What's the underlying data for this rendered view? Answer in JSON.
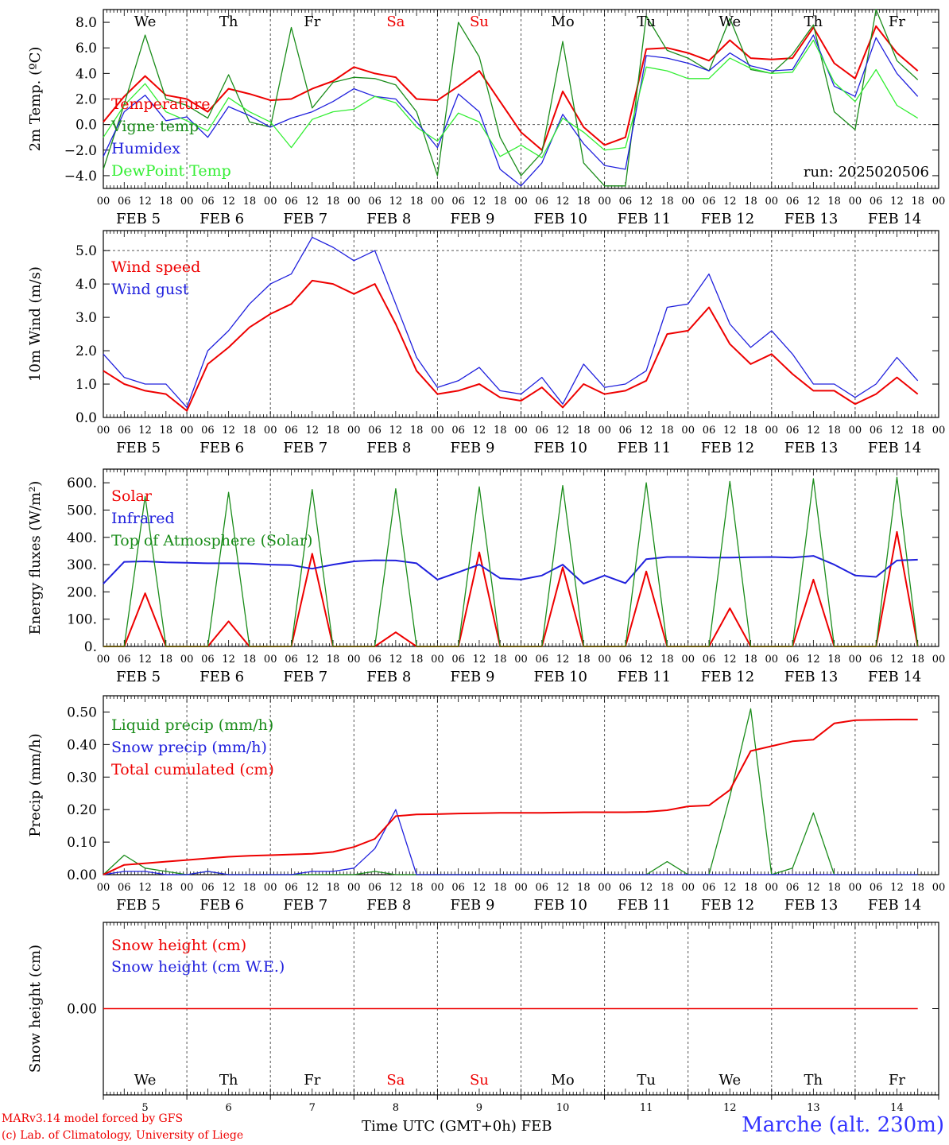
{
  "footer": {
    "credit_line1": "MARv3.14 model forced by GFS",
    "credit_line2": "(c) Lab. of Climatology, University of Liege",
    "axis_title": "Time UTC (GMT+0h)",
    "month": "FEB",
    "station": "Marche (alt. 230m)"
  },
  "colors": {
    "red": "#ee0000",
    "green": "#1a8c1a",
    "blue": "#2020dd",
    "lightgreen": "#33ee33",
    "grid": "#555555"
  },
  "chart_data": {
    "days": [
      {
        "weekday": "We",
        "date": "5",
        "weekend": false
      },
      {
        "weekday": "Th",
        "date": "6",
        "weekend": false
      },
      {
        "weekday": "Fr",
        "date": "7",
        "weekend": false
      },
      {
        "weekday": "Sa",
        "date": "8",
        "weekend": true
      },
      {
        "weekday": "Su",
        "date": "9",
        "weekend": true
      },
      {
        "weekday": "Mo",
        "date": "10",
        "weekend": false
      },
      {
        "weekday": "Tu",
        "date": "11",
        "weekend": false
      },
      {
        "weekday": "We",
        "date": "12",
        "weekend": false
      },
      {
        "weekday": "Th",
        "date": "13",
        "weekend": false
      },
      {
        "weekday": "Fr",
        "date": "14",
        "weekend": false
      }
    ],
    "hour_ticks": [
      "00",
      "06",
      "12",
      "18"
    ],
    "x_step_hours": 6,
    "panels": [
      {
        "type": "line",
        "ylabel": "2m Temp. (ºC)",
        "ylim": [
          -5,
          9
        ],
        "yticks": [
          -4,
          -2,
          0,
          2,
          4,
          6,
          8
        ],
        "yticklabels": [
          "−4.0",
          "−2.0",
          "0.0",
          "2.0",
          "4.0",
          "6.0",
          "8.0"
        ],
        "ref_line": 0,
        "show_weekdays_top": true,
        "annotation": "run: 2025020506",
        "series": [
          {
            "name": "Temperature",
            "color": "#ee0000",
            "width": 2,
            "values": [
              0.2,
              2.2,
              3.8,
              2.3,
              2.0,
              1.0,
              2.8,
              2.4,
              1.9,
              2.0,
              2.8,
              3.4,
              4.5,
              4.0,
              3.7,
              2.0,
              1.9,
              3.0,
              4.2,
              1.8,
              -0.6,
              -2.0,
              2.6,
              -0.2,
              -1.6,
              -1.0,
              5.9,
              6.0,
              5.6,
              5.0,
              6.6,
              5.2,
              5.1,
              5.2,
              7.6,
              4.8,
              3.6,
              7.7,
              5.6,
              4.2
            ]
          },
          {
            "name": "Vigne temp",
            "color": "#1a8c1a",
            "width": 1.3,
            "values": [
              -3.5,
              1.6,
              7.0,
              2.0,
              1.5,
              0.5,
              3.9,
              0.2,
              -0.2,
              7.6,
              1.3,
              3.3,
              3.7,
              3.6,
              3.1,
              1.0,
              -4.0,
              8.0,
              5.3,
              -1.0,
              -4.0,
              -2.2,
              6.5,
              -3.0,
              -4.8,
              -4.8,
              8.5,
              5.8,
              5.2,
              4.2,
              8.3,
              4.3,
              4.0,
              5.5,
              7.8,
              1.0,
              -0.4,
              9.0,
              5.0,
              3.5
            ]
          },
          {
            "name": "Humidex",
            "color": "#2020dd",
            "width": 1.3,
            "values": [
              -2.5,
              1.0,
              2.3,
              0.3,
              0.6,
              -1.0,
              1.4,
              0.7,
              -0.2,
              0.5,
              1.0,
              1.8,
              2.8,
              2.2,
              2.0,
              0.2,
              -1.8,
              2.4,
              1.0,
              -3.5,
              -4.8,
              -3.0,
              0.8,
              -1.5,
              -3.2,
              -3.5,
              5.4,
              5.2,
              4.8,
              4.2,
              5.6,
              4.6,
              4.2,
              4.3,
              7.0,
              3.0,
              2.2,
              6.8,
              4.0,
              2.2
            ]
          },
          {
            "name": "DewPoint Temp",
            "color": "#33ee33",
            "width": 1.3,
            "values": [
              -1.0,
              1.5,
              3.2,
              1.0,
              0.3,
              -0.5,
              2.1,
              1.0,
              0.2,
              -1.8,
              0.4,
              1.0,
              1.2,
              2.2,
              1.7,
              -0.2,
              -1.3,
              0.9,
              0.2,
              -2.5,
              -1.6,
              -2.6,
              0.5,
              -0.6,
              -2.0,
              -1.8,
              4.5,
              4.2,
              3.6,
              3.6,
              5.2,
              4.4,
              4.0,
              4.1,
              6.6,
              3.3,
              1.8,
              4.3,
              1.5,
              0.5
            ]
          }
        ]
      },
      {
        "type": "line",
        "ylabel": "10m Wind (m/s)",
        "ylim": [
          0,
          5.6
        ],
        "yticks": [
          0,
          1,
          2,
          3,
          4,
          5
        ],
        "yticklabels": [
          "0.0",
          "1.0",
          "2.0",
          "3.0",
          "4.0",
          "5.0"
        ],
        "ref_line": 5,
        "series": [
          {
            "name": "Wind speed",
            "color": "#ee0000",
            "width": 2,
            "values": [
              1.4,
              1.0,
              0.8,
              0.7,
              0.2,
              1.6,
              2.1,
              2.7,
              3.1,
              3.4,
              4.1,
              4.0,
              3.7,
              4.0,
              2.8,
              1.4,
              0.7,
              0.8,
              1.0,
              0.6,
              0.5,
              0.9,
              0.3,
              1.0,
              0.7,
              0.8,
              1.1,
              2.5,
              2.6,
              3.3,
              2.2,
              1.6,
              1.9,
              1.3,
              0.8,
              0.8,
              0.4,
              0.7,
              1.2,
              0.7
            ]
          },
          {
            "name": "Wind gust",
            "color": "#2020dd",
            "width": 1.3,
            "values": [
              1.9,
              1.2,
              1.0,
              1.0,
              0.3,
              2.0,
              2.6,
              3.4,
              4.0,
              4.3,
              5.4,
              5.1,
              4.7,
              5.0,
              3.4,
              1.8,
              0.9,
              1.1,
              1.5,
              0.8,
              0.7,
              1.2,
              0.4,
              1.6,
              0.9,
              1.0,
              1.4,
              3.3,
              3.4,
              4.3,
              2.8,
              2.1,
              2.6,
              1.9,
              1.0,
              1.0,
              0.6,
              1.0,
              1.8,
              1.1
            ]
          }
        ]
      },
      {
        "type": "line",
        "ylabel": "Energy fluxes (W/m²)",
        "ylim": [
          0,
          650
        ],
        "yticks": [
          0,
          100,
          200,
          300,
          400,
          500,
          600
        ],
        "yticklabels": [
          "0.",
          "100.",
          "200.",
          "300.",
          "400.",
          "500.",
          "600."
        ],
        "series": [
          {
            "name": "Solar",
            "color": "#ee0000",
            "width": 2,
            "values": [
              0,
              0,
              195,
              0,
              0,
              0,
              92,
              0,
              0,
              0,
              340,
              0,
              0,
              0,
              52,
              0,
              0,
              0,
              345,
              0,
              0,
              0,
              290,
              0,
              0,
              0,
              275,
              0,
              0,
              0,
              140,
              0,
              0,
              0,
              245,
              0,
              0,
              0,
              420,
              0
            ]
          },
          {
            "name": "Infrared",
            "color": "#2020dd",
            "width": 2,
            "values": [
              230,
              310,
              312,
              308,
              307,
              305,
              305,
              304,
              300,
              298,
              285,
              300,
              312,
              316,
              315,
              305,
              245,
              272,
              300,
              250,
              245,
              260,
              300,
              230,
              260,
              232,
              320,
              328,
              328,
              326,
              326,
              327,
              328,
              326,
              332,
              300,
              260,
              255,
              315,
              318
            ]
          },
          {
            "name": "Top of Atmosphere (Solar)",
            "color": "#1a8c1a",
            "width": 1.3,
            "values": [
              0,
              0,
              550,
              0,
              0,
              0,
              565,
              0,
              0,
              0,
              575,
              0,
              0,
              0,
              578,
              0,
              0,
              0,
              585,
              0,
              0,
              0,
              590,
              0,
              0,
              0,
              600,
              0,
              0,
              0,
              605,
              0,
              0,
              0,
              615,
              0,
              0,
              0,
              620,
              0
            ]
          }
        ]
      },
      {
        "type": "line",
        "ylabel": "Precip (mm/h)",
        "ylim": [
          0,
          0.55
        ],
        "yticks": [
          0,
          0.1,
          0.2,
          0.3,
          0.4,
          0.5
        ],
        "yticklabels": [
          "0.00",
          "0.10",
          "0.20",
          "0.30",
          "0.40",
          "0.50"
        ],
        "series": [
          {
            "name": "Liquid precip (mm/h)",
            "color": "#1a8c1a",
            "width": 1.3,
            "values": [
              0,
              0.06,
              0.02,
              0.01,
              0,
              0.01,
              0,
              0,
              0,
              0,
              0,
              0,
              0,
              0.01,
              0,
              0,
              0,
              0,
              0,
              0,
              0,
              0,
              0,
              0,
              0,
              0,
              0,
              0.04,
              0,
              0,
              0.24,
              0.51,
              0,
              0.02,
              0.19,
              0,
              0,
              0,
              0,
              0
            ]
          },
          {
            "name": "Snow precip (mm/h)",
            "color": "#2020dd",
            "width": 1.3,
            "values": [
              0,
              0.01,
              0.01,
              0,
              0,
              0.01,
              0,
              0,
              0,
              0,
              0.01,
              0.01,
              0.02,
              0.08,
              0.2,
              0,
              0,
              0,
              0,
              0,
              0,
              0,
              0,
              0,
              0,
              0,
              0,
              0,
              0,
              0,
              0,
              0,
              0,
              0,
              0,
              0,
              0,
              0,
              0,
              0
            ]
          },
          {
            "name": "Total cumulated (cm)",
            "color": "#ee0000",
            "width": 2,
            "values": [
              0,
              0.03,
              0.035,
              0.04,
              0.045,
              0.05,
              0.055,
              0.058,
              0.06,
              0.062,
              0.064,
              0.07,
              0.085,
              0.11,
              0.18,
              0.185,
              0.186,
              0.188,
              0.189,
              0.19,
              0.19,
              0.19,
              0.191,
              0.192,
              0.192,
              0.192,
              0.193,
              0.198,
              0.21,
              0.213,
              0.26,
              0.38,
              0.395,
              0.41,
              0.415,
              0.465,
              0.475,
              0.476,
              0.477,
              0.477
            ]
          }
        ]
      },
      {
        "type": "line",
        "ylabel": "Snow height (cm)",
        "ylim": [
          -1,
          1
        ],
        "yticks": [
          0
        ],
        "yticklabels": [
          "0.00"
        ],
        "show_weekdays_bottom": true,
        "series": [
          {
            "name": "Snow height (cm)",
            "color": "#ee0000",
            "width": 1.5,
            "values": [
              0,
              0,
              0,
              0,
              0,
              0,
              0,
              0,
              0,
              0,
              0,
              0,
              0,
              0,
              0,
              0,
              0,
              0,
              0,
              0,
              0,
              0,
              0,
              0,
              0,
              0,
              0,
              0,
              0,
              0,
              0,
              0,
              0,
              0,
              0,
              0,
              0,
              0,
              0,
              0
            ]
          },
          {
            "name": "Snow height (cm W.E.)",
            "color": "#2020dd",
            "width": 1.5,
            "hidden": true,
            "values": [
              0,
              0,
              0,
              0,
              0,
              0,
              0,
              0,
              0,
              0,
              0,
              0,
              0,
              0,
              0,
              0,
              0,
              0,
              0,
              0,
              0,
              0,
              0,
              0,
              0,
              0,
              0,
              0,
              0,
              0,
              0,
              0,
              0,
              0,
              0,
              0,
              0,
              0,
              0,
              0
            ]
          }
        ]
      }
    ]
  }
}
